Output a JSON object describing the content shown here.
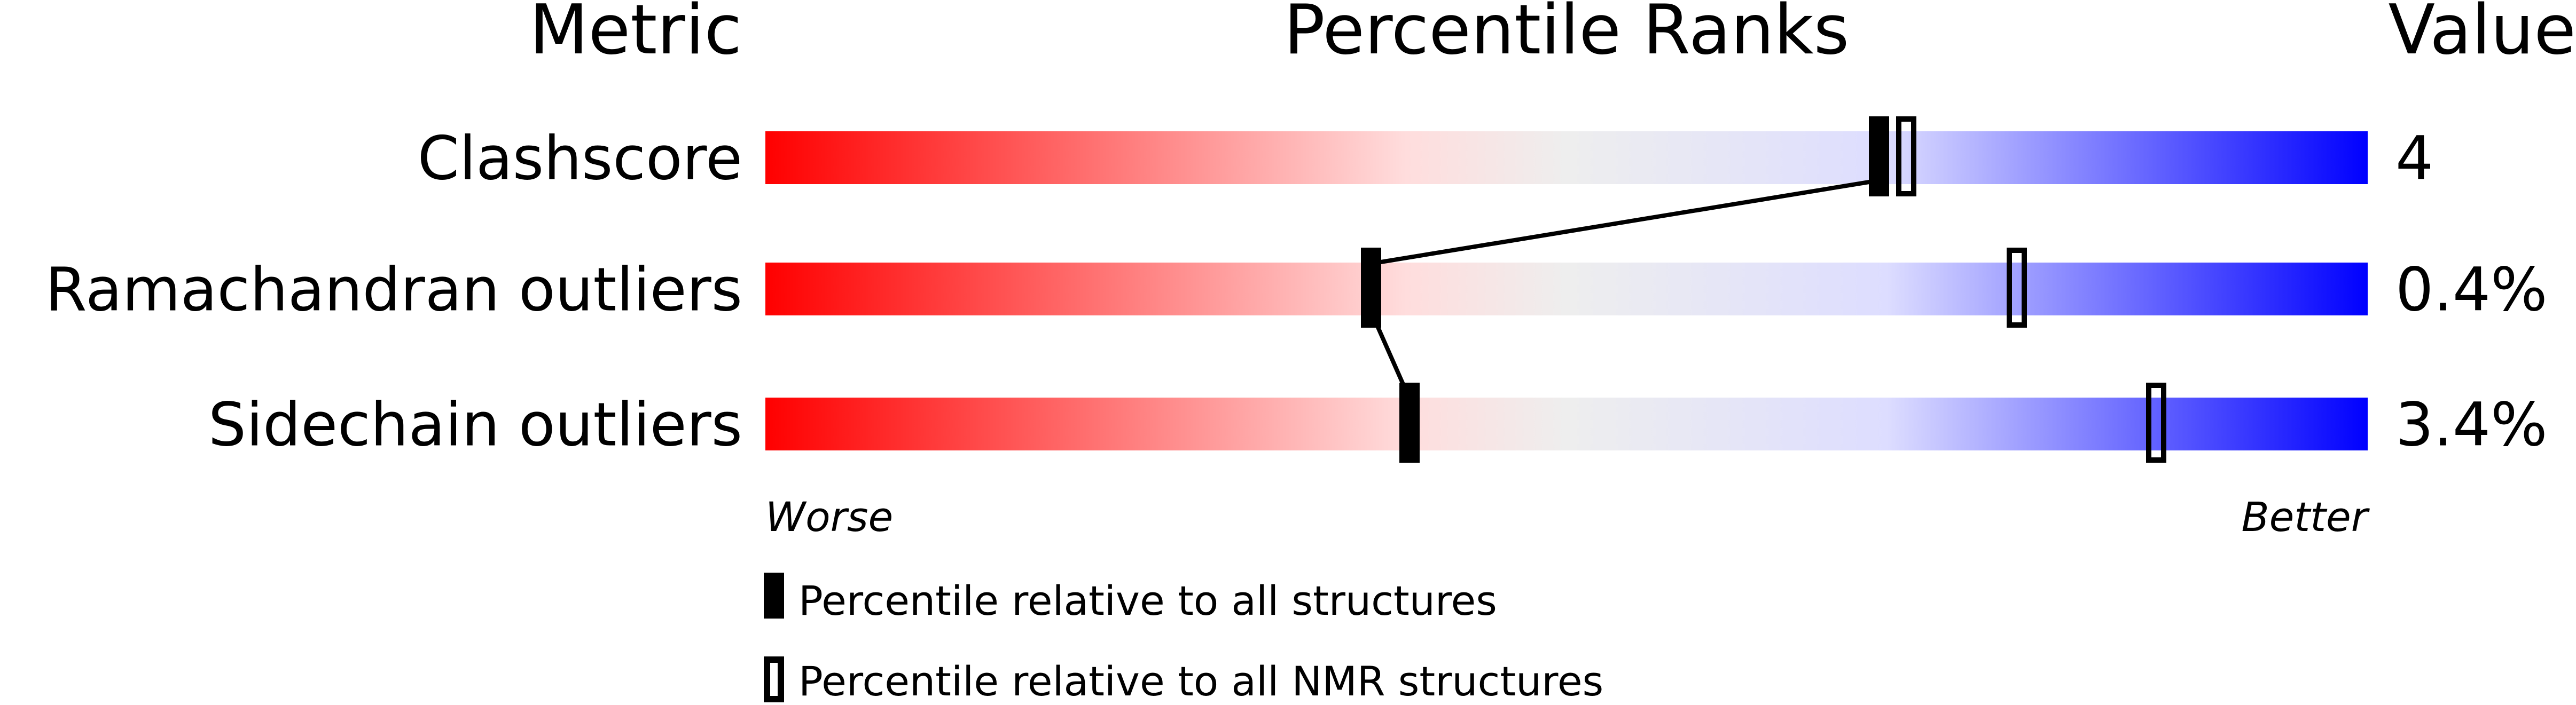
{
  "chart_data": {
    "type": "percentile-slider",
    "headers": {
      "metric": "Metric",
      "percentile": "Percentile Ranks",
      "value": "Value"
    },
    "axis": {
      "left": "Worse",
      "right": "Better"
    },
    "range": [
      0,
      100
    ],
    "rows": [
      {
        "metric": "Clashscore",
        "value": "4",
        "percentile_all": 69.5,
        "percentile_nmr": 71.2
      },
      {
        "metric": "Ramachandran outliers",
        "value": "0.4%",
        "percentile_all": 37.8,
        "percentile_nmr": 78.1
      },
      {
        "metric": "Sidechain outliers",
        "value": "3.4%",
        "percentile_all": 40.2,
        "percentile_nmr": 86.8
      }
    ],
    "legend": {
      "all": "Percentile relative to all structures",
      "nmr": "Percentile relative to all NMR structures"
    },
    "colors": {
      "worse": "#ff0000",
      "neutral": "#eeeeee",
      "better": "#0000ff",
      "marker": "#000000"
    }
  }
}
